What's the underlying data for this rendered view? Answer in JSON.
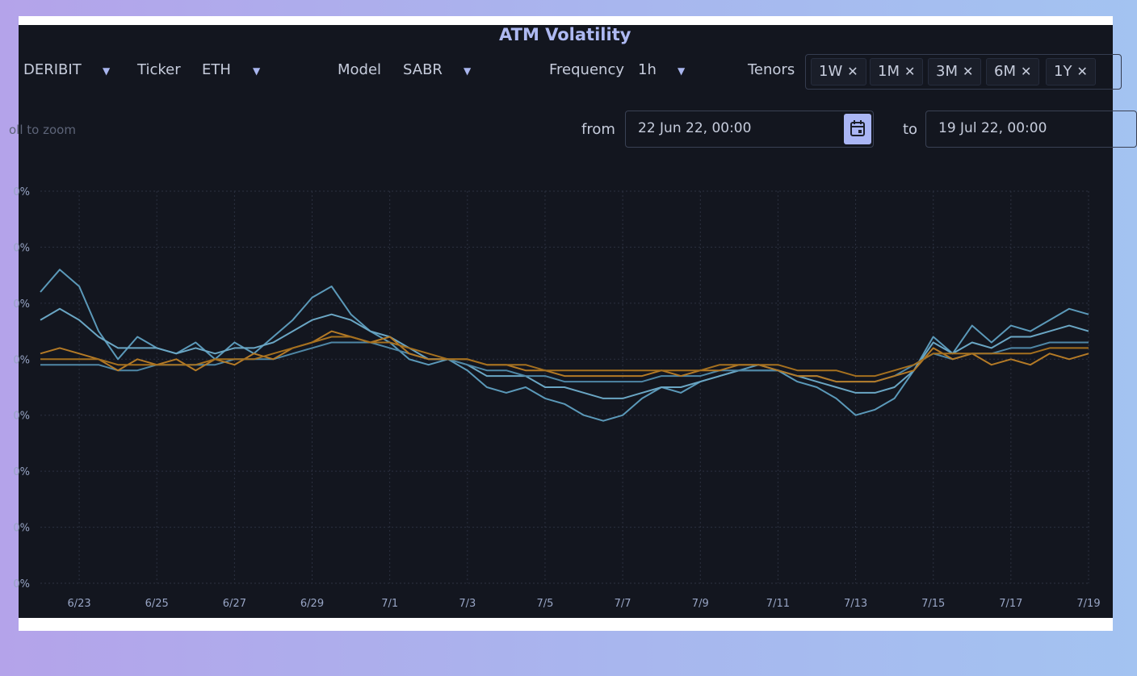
{
  "title": "ATM Volatility",
  "controls": {
    "exchange": "DERIBIT",
    "ticker_label": "Ticker",
    "ticker": "ETH",
    "model_label": "Model",
    "model": "SABR",
    "frequency_label": "Frequency",
    "frequency": "1h",
    "tenors_label": "Tenors",
    "tenors": [
      "1W",
      "1M",
      "3M",
      "6M",
      "1Y"
    ],
    "remove_glyph": "✕",
    "dropdown_glyph": "▼",
    "from_label": "from",
    "from_value": "22 Jun 22, 00:00",
    "to_label": "to",
    "to_value": "19 Jul 22, 00:00",
    "zoom_hint": "oll to zoom"
  },
  "icons": {
    "calendar": "calendar-icon",
    "dropdown": "caret-down-icon",
    "remove": "close-icon"
  },
  "colors": {
    "panel_bg": "#13161f",
    "title": "#aeb9f2",
    "series_blue": "#5b99b9",
    "series_blue_dark": "#4f87a6",
    "series_orange": "#b47a26",
    "grid": "#2c3140"
  },
  "chart_data": {
    "type": "line",
    "title": "ATM Volatility",
    "x_start": "6/22",
    "x_ticks": [
      "6/23",
      "6/25",
      "6/27",
      "6/29",
      "7/1",
      "7/3",
      "7/5",
      "7/7",
      "7/9",
      "7/11",
      "7/13",
      "7/15",
      "7/17",
      "7/19"
    ],
    "y_tick_labels": [
      "0%",
      "0%",
      "0%",
      "0%",
      "0%",
      "0%",
      "0%",
      "0%"
    ],
    "grid": true,
    "series": [
      {
        "color": "#5b99b9",
        "x": [
          0,
          0.5,
          1,
          1.5,
          2,
          2.5,
          3,
          3.5,
          4,
          4.5,
          5,
          5.5,
          6,
          6.5,
          7,
          7.5,
          8,
          8.5,
          9,
          9.5,
          10,
          10.5,
          11,
          11.5,
          12,
          12.5,
          13,
          13.5,
          14,
          14.5,
          15,
          15.5,
          16,
          16.5,
          17,
          17.5,
          18,
          18.5,
          19,
          19.5,
          20,
          20.5,
          21,
          21.5,
          22,
          22.5,
          23,
          23.5,
          24,
          24.5,
          25,
          25.5,
          26,
          26.5,
          27
        ],
        "y": [
          0.52,
          0.56,
          0.53,
          0.45,
          0.4,
          0.44,
          0.42,
          0.41,
          0.43,
          0.4,
          0.43,
          0.41,
          0.44,
          0.47,
          0.51,
          0.53,
          0.48,
          0.45,
          0.43,
          0.4,
          0.39,
          0.4,
          0.38,
          0.35,
          0.34,
          0.35,
          0.33,
          0.32,
          0.3,
          0.29,
          0.3,
          0.33,
          0.35,
          0.34,
          0.36,
          0.37,
          0.38,
          0.39,
          0.38,
          0.36,
          0.35,
          0.33,
          0.3,
          0.31,
          0.33,
          0.38,
          0.44,
          0.41,
          0.46,
          0.43,
          0.46,
          0.45,
          0.47,
          0.49,
          0.48
        ]
      },
      {
        "color": "#6aa6c4",
        "x": [
          0,
          0.5,
          1,
          1.5,
          2,
          2.5,
          3,
          3.5,
          4,
          4.5,
          5,
          5.5,
          6,
          6.5,
          7,
          7.5,
          8,
          8.5,
          9,
          9.5,
          10,
          10.5,
          11,
          11.5,
          12,
          12.5,
          13,
          13.5,
          14,
          14.5,
          15,
          15.5,
          16,
          16.5,
          17,
          17.5,
          18,
          18.5,
          19,
          19.5,
          20,
          20.5,
          21,
          21.5,
          22,
          22.5,
          23,
          23.5,
          24,
          24.5,
          25,
          25.5,
          26,
          26.5,
          27
        ],
        "y": [
          0.47,
          0.49,
          0.47,
          0.44,
          0.42,
          0.42,
          0.42,
          0.41,
          0.42,
          0.41,
          0.42,
          0.42,
          0.43,
          0.45,
          0.47,
          0.48,
          0.47,
          0.45,
          0.44,
          0.42,
          0.4,
          0.4,
          0.39,
          0.37,
          0.37,
          0.37,
          0.35,
          0.35,
          0.34,
          0.33,
          0.33,
          0.34,
          0.35,
          0.35,
          0.36,
          0.37,
          0.38,
          0.38,
          0.38,
          0.37,
          0.36,
          0.35,
          0.34,
          0.34,
          0.35,
          0.38,
          0.43,
          0.41,
          0.43,
          0.42,
          0.44,
          0.44,
          0.45,
          0.46,
          0.45
        ]
      },
      {
        "color": "#4f87a6",
        "x": [
          0,
          0.5,
          1,
          1.5,
          2,
          2.5,
          3,
          3.5,
          4,
          4.5,
          5,
          5.5,
          6,
          6.5,
          7,
          7.5,
          8,
          8.5,
          9,
          9.5,
          10,
          10.5,
          11,
          11.5,
          12,
          12.5,
          13,
          13.5,
          14,
          14.5,
          15,
          15.5,
          16,
          16.5,
          17,
          17.5,
          18,
          18.5,
          19,
          19.5,
          20,
          20.5,
          21,
          21.5,
          22,
          22.5,
          23,
          23.5,
          24,
          24.5,
          25,
          25.5,
          26,
          26.5,
          27
        ],
        "y": [
          0.39,
          0.39,
          0.39,
          0.39,
          0.38,
          0.38,
          0.39,
          0.39,
          0.39,
          0.39,
          0.4,
          0.4,
          0.4,
          0.41,
          0.42,
          0.43,
          0.43,
          0.43,
          0.42,
          0.41,
          0.4,
          0.4,
          0.39,
          0.38,
          0.38,
          0.37,
          0.37,
          0.36,
          0.36,
          0.36,
          0.36,
          0.36,
          0.37,
          0.37,
          0.37,
          0.38,
          0.38,
          0.38,
          0.38,
          0.37,
          0.37,
          0.36,
          0.36,
          0.36,
          0.37,
          0.39,
          0.41,
          0.4,
          0.41,
          0.41,
          0.42,
          0.42,
          0.43,
          0.43,
          0.43
        ]
      },
      {
        "color": "#b47a26",
        "x": [
          0,
          0.5,
          1,
          1.5,
          2,
          2.5,
          3,
          3.5,
          4,
          4.5,
          5,
          5.5,
          6,
          6.5,
          7,
          7.5,
          8,
          8.5,
          9,
          9.5,
          10,
          10.5,
          11,
          11.5,
          12,
          12.5,
          13,
          13.5,
          14,
          14.5,
          15,
          15.5,
          16,
          16.5,
          17,
          17.5,
          18,
          18.5,
          19,
          19.5,
          20,
          20.5,
          21,
          21.5,
          22,
          22.5,
          23,
          23.5,
          24,
          24.5,
          25,
          25.5,
          26,
          26.5,
          27
        ],
        "y": [
          0.41,
          0.42,
          0.41,
          0.4,
          0.38,
          0.4,
          0.39,
          0.4,
          0.38,
          0.4,
          0.39,
          0.41,
          0.4,
          0.42,
          0.43,
          0.45,
          0.44,
          0.43,
          0.44,
          0.41,
          0.4,
          0.4,
          0.4,
          0.39,
          0.39,
          0.38,
          0.38,
          0.37,
          0.37,
          0.37,
          0.37,
          0.37,
          0.38,
          0.37,
          0.38,
          0.38,
          0.39,
          0.39,
          0.38,
          0.37,
          0.37,
          0.36,
          0.36,
          0.36,
          0.37,
          0.38,
          0.42,
          0.4,
          0.41,
          0.39,
          0.4,
          0.39,
          0.41,
          0.4,
          0.41
        ]
      },
      {
        "color": "#a5701f",
        "x": [
          0,
          0.5,
          1,
          1.5,
          2,
          2.5,
          3,
          3.5,
          4,
          4.5,
          5,
          5.5,
          6,
          6.5,
          7,
          7.5,
          8,
          8.5,
          9,
          9.5,
          10,
          10.5,
          11,
          11.5,
          12,
          12.5,
          13,
          13.5,
          14,
          14.5,
          15,
          15.5,
          16,
          16.5,
          17,
          17.5,
          18,
          18.5,
          19,
          19.5,
          20,
          20.5,
          21,
          21.5,
          22,
          22.5,
          23,
          23.5,
          24,
          24.5,
          25,
          25.5,
          26,
          26.5,
          27
        ],
        "y": [
          0.4,
          0.4,
          0.4,
          0.4,
          0.39,
          0.39,
          0.39,
          0.39,
          0.39,
          0.4,
          0.4,
          0.4,
          0.41,
          0.42,
          0.43,
          0.44,
          0.44,
          0.43,
          0.43,
          0.42,
          0.41,
          0.4,
          0.4,
          0.39,
          0.39,
          0.39,
          0.38,
          0.38,
          0.38,
          0.38,
          0.38,
          0.38,
          0.38,
          0.38,
          0.38,
          0.39,
          0.39,
          0.39,
          0.39,
          0.38,
          0.38,
          0.38,
          0.37,
          0.37,
          0.38,
          0.39,
          0.41,
          0.41,
          0.41,
          0.41,
          0.41,
          0.41,
          0.42,
          0.42,
          0.42
        ]
      }
    ],
    "ylim": [
      0.0,
      0.7
    ],
    "xlim": [
      0,
      27
    ]
  }
}
